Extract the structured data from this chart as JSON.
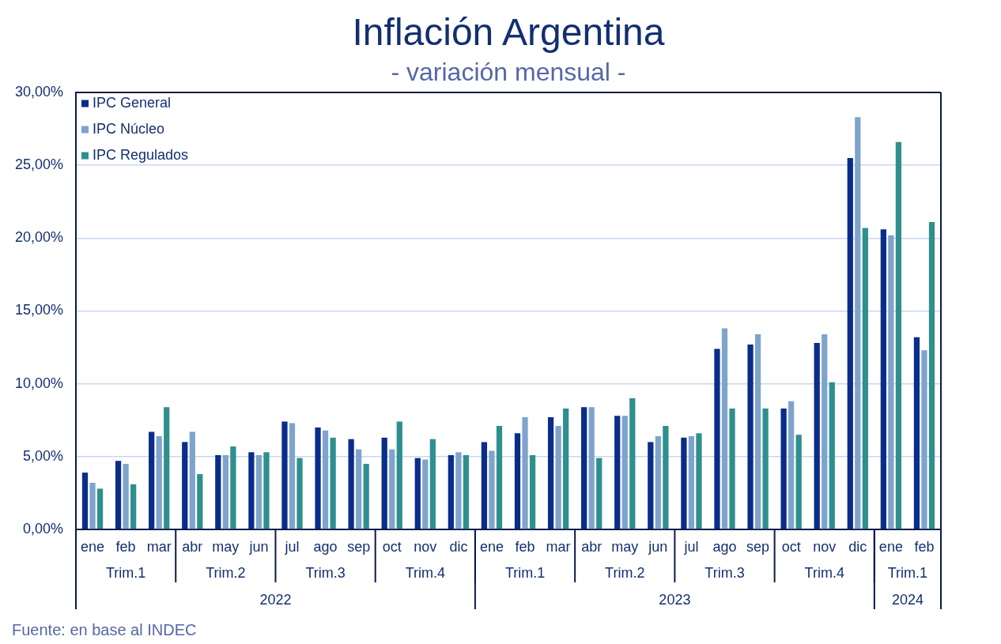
{
  "chart_data": {
    "type": "bar",
    "title": "Inflación Argentina",
    "subtitle": "- variación mensual -",
    "categories": [
      "ene",
      "feb",
      "mar",
      "abr",
      "may",
      "jun",
      "jul",
      "ago",
      "sep",
      "oct",
      "nov",
      "dic",
      "ene",
      "feb",
      "mar",
      "abr",
      "may",
      "jun",
      "jul",
      "ago",
      "sep",
      "oct",
      "nov",
      "dic",
      "ene",
      "feb"
    ],
    "series": [
      {
        "name": "IPC General",
        "color": "#0a2d8a",
        "values": [
          3.9,
          4.7,
          6.7,
          6.0,
          5.1,
          5.3,
          7.4,
          7.0,
          6.2,
          6.3,
          4.9,
          5.1,
          6.0,
          6.6,
          7.7,
          8.4,
          7.8,
          6.0,
          6.3,
          12.4,
          12.7,
          8.3,
          12.8,
          25.5,
          20.6,
          13.2
        ]
      },
      {
        "name": "IPC Núcleo",
        "color": "#7fa4cc",
        "values": [
          3.2,
          4.5,
          6.4,
          6.7,
          5.1,
          5.1,
          7.3,
          6.8,
          5.5,
          5.5,
          4.8,
          5.3,
          5.4,
          7.7,
          7.1,
          8.4,
          7.8,
          6.4,
          6.4,
          13.8,
          13.4,
          8.8,
          13.4,
          28.3,
          20.2,
          12.3
        ]
      },
      {
        "name": "IPC Regulados",
        "color": "#2f8f8f",
        "values": [
          2.8,
          3.1,
          8.4,
          3.8,
          5.7,
          5.3,
          4.9,
          6.3,
          4.5,
          7.4,
          6.2,
          5.1,
          7.1,
          5.1,
          8.3,
          4.9,
          9.0,
          7.1,
          6.6,
          8.3,
          8.3,
          6.5,
          10.1,
          20.7,
          26.6,
          21.1
        ]
      }
    ],
    "ylim": [
      0,
      30
    ],
    "yticks": [
      {
        "value": 0,
        "label": "0,00%"
      },
      {
        "value": 5,
        "label": "5,00%"
      },
      {
        "value": 10,
        "label": "10,00%"
      },
      {
        "value": 15,
        "label": "15,00%"
      },
      {
        "value": 20,
        "label": "20,00%"
      },
      {
        "value": 25,
        "label": "25,00%"
      },
      {
        "value": 30,
        "label": "30,00%"
      }
    ],
    "grid": "y",
    "legend": "top left",
    "annotations": [
      "Fuente: en base al INDEC",
      "Trim.1",
      "Trim.2",
      "Trim.3",
      "Trim.4",
      "Trim.1",
      "Trim.2",
      "Trim.3",
      "Trim.4",
      "Trim.1",
      "2022",
      "2023",
      "2024"
    ]
  }
}
